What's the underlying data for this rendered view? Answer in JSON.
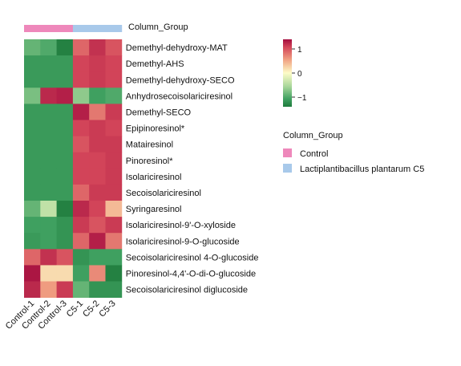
{
  "chart_data": {
    "type": "heatmap",
    "title": "",
    "xlabel": "",
    "ylabel": "",
    "column_group_label": "Column_Group",
    "columns": [
      "Control-1",
      "Control-2",
      "Control-3",
      "C5-1",
      "C5-2",
      "C5-3"
    ],
    "column_groups": [
      "Control",
      "Control",
      "Control",
      "Lactiplantibacillus plantarum C5",
      "Lactiplantibacillus plantarum C5",
      "Lactiplantibacillus plantarum C5"
    ],
    "rows": [
      "Demethyl-dehydroxy-MAT",
      "Demethyl-AHS",
      "Demethyl-dehydroxy-SECO",
      "Anhydrosecoisolariciresinol",
      "Demethyl-SECO",
      "Epipinoresinol*",
      "Matairesinol",
      "Pinoresinol*",
      "Isolariciresinol",
      "Secoisolariciresinol",
      "Syringaresinol",
      "Isolariciresinol-9'-O-xyloside",
      "Isolariciresinol-9-O-glucoside",
      "Secoisolariciresinol 4-O-glucoside",
      "Pinoresinol-4,4'-O-di-O-glucoside",
      "Secoisolariciresinol diglucoside"
    ],
    "values": [
      [
        -0.6,
        -0.7,
        -1.3,
        0.6,
        1.0,
        0.7
      ],
      [
        -0.9,
        -0.9,
        -0.9,
        0.8,
        0.9,
        0.8
      ],
      [
        -0.9,
        -0.9,
        -0.9,
        0.8,
        0.9,
        0.8
      ],
      [
        -0.5,
        1.1,
        1.2,
        -0.4,
        -0.8,
        -0.7
      ],
      [
        -0.9,
        -0.9,
        -0.9,
        1.2,
        0.5,
        0.9
      ],
      [
        -0.9,
        -0.9,
        -0.9,
        0.8,
        0.9,
        0.8
      ],
      [
        -0.9,
        -0.9,
        -0.9,
        0.7,
        0.9,
        0.9
      ],
      [
        -0.9,
        -0.9,
        -0.9,
        0.8,
        0.8,
        0.9
      ],
      [
        -0.9,
        -0.9,
        -0.9,
        0.8,
        0.8,
        0.9
      ],
      [
        -0.9,
        -0.9,
        -0.9,
        0.6,
        0.9,
        0.9
      ],
      [
        -0.6,
        -0.2,
        -1.3,
        1.1,
        0.8,
        0.2
      ],
      [
        -0.8,
        -0.8,
        -1.0,
        0.9,
        0.7,
        0.9
      ],
      [
        -0.9,
        -0.8,
        -1.0,
        0.6,
        1.2,
        0.5
      ],
      [
        0.6,
        1.0,
        0.7,
        -1.0,
        -0.8,
        -0.8
      ],
      [
        1.3,
        0.1,
        0.1,
        -0.8,
        0.4,
        -1.3
      ],
      [
        1.1,
        0.3,
        0.9,
        -0.6,
        -1.0,
        -1.0
      ]
    ],
    "color_scale": {
      "min": -1.4,
      "max": 1.4,
      "low_color": "#1e7b3c",
      "mid_color": "#fdfcc8",
      "high_color": "#a30d3f",
      "ticks": [
        1,
        0,
        -1
      ],
      "tick_labels": [
        "1",
        "0",
        "−1"
      ]
    },
    "legend": {
      "title": "Column_Group",
      "items": [
        {
          "label": "Control",
          "color": "#ee88bb"
        },
        {
          "label": "Lactiplantibacillus plantarum C5",
          "color": "#a8c9ea"
        }
      ]
    }
  }
}
